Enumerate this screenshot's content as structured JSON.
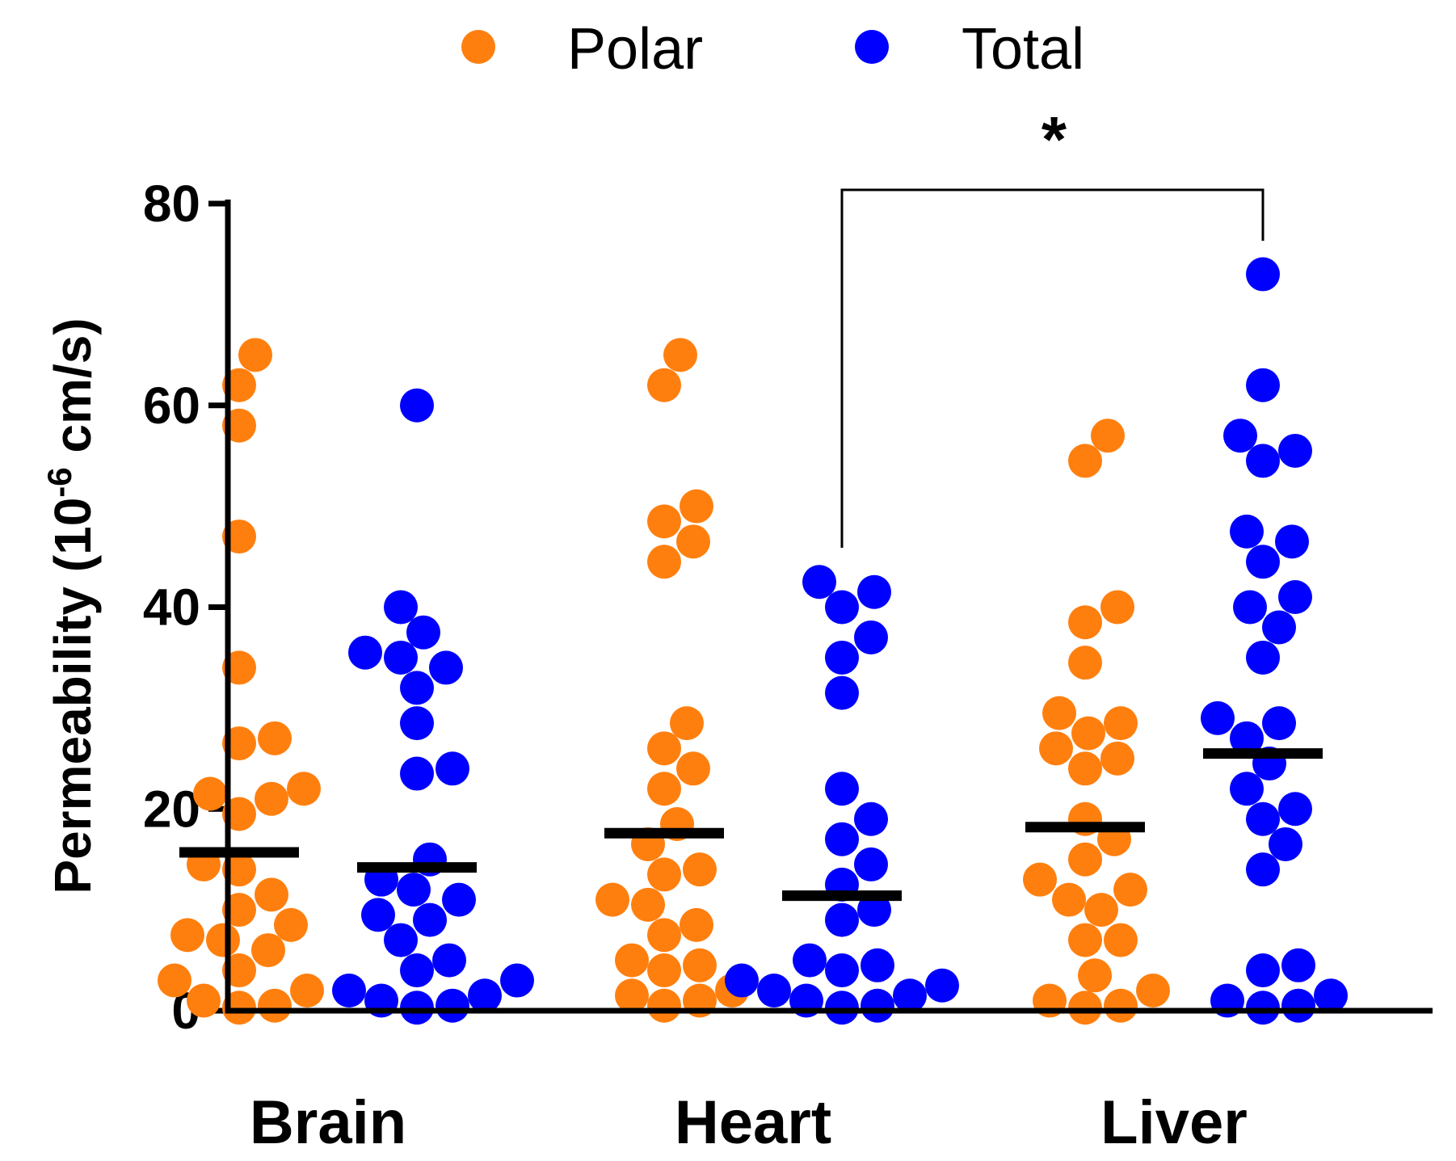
{
  "chart_data": {
    "type": "scatter",
    "title": "",
    "ylabel": {
      "main": "Permeability (10",
      "sup": "-6",
      "tail": " cm/s)"
    },
    "ylim": [
      0,
      80
    ],
    "yticks": [
      0,
      20,
      40,
      60,
      80
    ],
    "categories": [
      "Brain",
      "Heart",
      "Liver"
    ],
    "legend_position": "top-center",
    "series": [
      {
        "name": "Polar",
        "color": "#FF7F0E",
        "groups": [
          {
            "category": "Brain",
            "mean": 15.7,
            "values": [
              65,
              62,
              58,
              47,
              34,
              27,
              26.5,
              22,
              21.5,
              21,
              19.5,
              14.5,
              14,
              11.5,
              10,
              8.5,
              7.5,
              7,
              6,
              4,
              3,
              2,
              1,
              0.5,
              0.3
            ]
          },
          {
            "category": "Heart",
            "mean": 17.6,
            "values": [
              65,
              62,
              50,
              48.5,
              46.5,
              44.5,
              28.5,
              26,
              24,
              22,
              18.5,
              16.5,
              14,
              13.5,
              11,
              10.5,
              8.5,
              7.5,
              5,
              4.5,
              4,
              2,
              1.5,
              1,
              0.5
            ]
          },
          {
            "category": "Liver",
            "mean": 18.2,
            "values": [
              57,
              54.5,
              40,
              38.5,
              34.5,
              29.5,
              28.5,
              27.5,
              26,
              25,
              24,
              19,
              17,
              15,
              13,
              12,
              11,
              10,
              7,
              7,
              3.5,
              2,
              1,
              0.5,
              0.3
            ]
          }
        ]
      },
      {
        "name": "Total",
        "color": "#0000FF",
        "groups": [
          {
            "category": "Brain",
            "mean": 14.2,
            "values": [
              60,
              40,
              37.5,
              35.5,
              35,
              34,
              32,
              28.5,
              24,
              23.5,
              15,
              13,
              12,
              11,
              9.5,
              9,
              7,
              5,
              4,
              3,
              2,
              1.5,
              1,
              0.5,
              0.3
            ]
          },
          {
            "category": "Heart",
            "mean": 11.4,
            "values": [
              42.5,
              41.5,
              40,
              37,
              35,
              31.5,
              22,
              19,
              17,
              14.5,
              12.5,
              10,
              9,
              5,
              4.5,
              4,
              3,
              2.5,
              2,
              1.5,
              1,
              0.5,
              0.3
            ]
          },
          {
            "category": "Liver",
            "mean": 25.5,
            "values": [
              73,
              62,
              57,
              55.5,
              54.5,
              47.5,
              46.5,
              44.5,
              41,
              40,
              38,
              35,
              29,
              28.5,
              27,
              24.5,
              22,
              20,
              19,
              16.5,
              14,
              4.5,
              4,
              1.5,
              1,
              0.5,
              0.3
            ]
          }
        ]
      }
    ],
    "annotations": [
      {
        "type": "significance-bracket",
        "from": {
          "category": "Heart",
          "series": "Total"
        },
        "to": {
          "category": "Liver",
          "series": "Total"
        },
        "level": 80,
        "label": "*"
      }
    ]
  },
  "legend": {
    "items": [
      {
        "label": "Polar",
        "color": "#FF7F0E"
      },
      {
        "label": "Total",
        "color": "#0000FF"
      }
    ]
  }
}
